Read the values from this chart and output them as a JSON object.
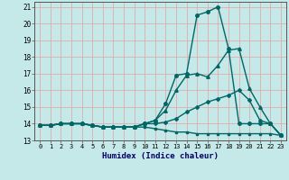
{
  "xlabel": "Humidex (Indice chaleur)",
  "xlim": [
    -0.5,
    23.5
  ],
  "ylim": [
    13,
    21.3
  ],
  "yticks": [
    13,
    14,
    15,
    16,
    17,
    18,
    19,
    20,
    21
  ],
  "xticks": [
    0,
    1,
    2,
    3,
    4,
    5,
    6,
    7,
    8,
    9,
    10,
    11,
    12,
    13,
    14,
    15,
    16,
    17,
    18,
    19,
    20,
    21,
    22,
    23
  ],
  "bg_color": "#c5e8e8",
  "line_color": "#006666",
  "grid_color": "#e8a0a0",
  "lines": [
    {
      "x": [
        0,
        1,
        2,
        3,
        4,
        5,
        6,
        7,
        8,
        9,
        10,
        11,
        12,
        13,
        14,
        15,
        16,
        17,
        18,
        19,
        20,
        21,
        22,
        23
      ],
      "y": [
        13.9,
        13.9,
        14.0,
        14.0,
        14.0,
        13.9,
        13.8,
        13.8,
        13.8,
        13.8,
        13.8,
        13.7,
        13.6,
        13.5,
        13.5,
        13.4,
        13.4,
        13.4,
        13.4,
        13.4,
        13.4,
        13.4,
        13.4,
        13.3
      ],
      "marker": "s",
      "markersize": 2.0,
      "linewidth": 1.0,
      "linestyle": "-"
    },
    {
      "x": [
        0,
        1,
        2,
        3,
        4,
        5,
        6,
        7,
        8,
        9,
        10,
        11,
        12,
        13,
        14,
        15,
        16,
        17,
        18,
        19,
        20,
        21,
        22,
        23
      ],
      "y": [
        13.9,
        13.9,
        14.0,
        14.0,
        14.0,
        13.9,
        13.8,
        13.8,
        13.8,
        13.8,
        14.0,
        14.0,
        14.1,
        14.3,
        14.7,
        15.0,
        15.3,
        15.5,
        15.7,
        16.0,
        15.4,
        14.2,
        14.0,
        13.3
      ],
      "marker": "D",
      "markersize": 2.0,
      "linewidth": 1.0,
      "linestyle": "-"
    },
    {
      "x": [
        0,
        1,
        2,
        3,
        4,
        5,
        6,
        7,
        8,
        9,
        10,
        11,
        12,
        13,
        14,
        15,
        16,
        17,
        18,
        19,
        20,
        21,
        22,
        23
      ],
      "y": [
        13.9,
        13.9,
        14.0,
        14.0,
        14.0,
        13.9,
        13.8,
        13.8,
        13.8,
        13.8,
        14.0,
        14.2,
        14.8,
        16.0,
        16.9,
        17.0,
        16.8,
        17.5,
        18.4,
        18.5,
        16.1,
        15.0,
        14.0,
        13.3
      ],
      "marker": "^",
      "markersize": 2.5,
      "linewidth": 1.0,
      "linestyle": "-"
    },
    {
      "x": [
        0,
        1,
        2,
        3,
        4,
        5,
        6,
        7,
        8,
        9,
        10,
        11,
        12,
        13,
        14,
        15,
        16,
        17,
        18,
        19,
        20,
        21,
        22,
        23
      ],
      "y": [
        13.9,
        13.9,
        14.0,
        14.0,
        14.0,
        13.9,
        13.8,
        13.8,
        13.8,
        13.8,
        14.0,
        14.2,
        15.2,
        16.9,
        17.0,
        20.5,
        20.7,
        21.0,
        18.5,
        14.0,
        14.0,
        14.0,
        14.0,
        13.3
      ],
      "marker": "o",
      "markersize": 2.5,
      "linewidth": 1.0,
      "linestyle": "-"
    }
  ]
}
